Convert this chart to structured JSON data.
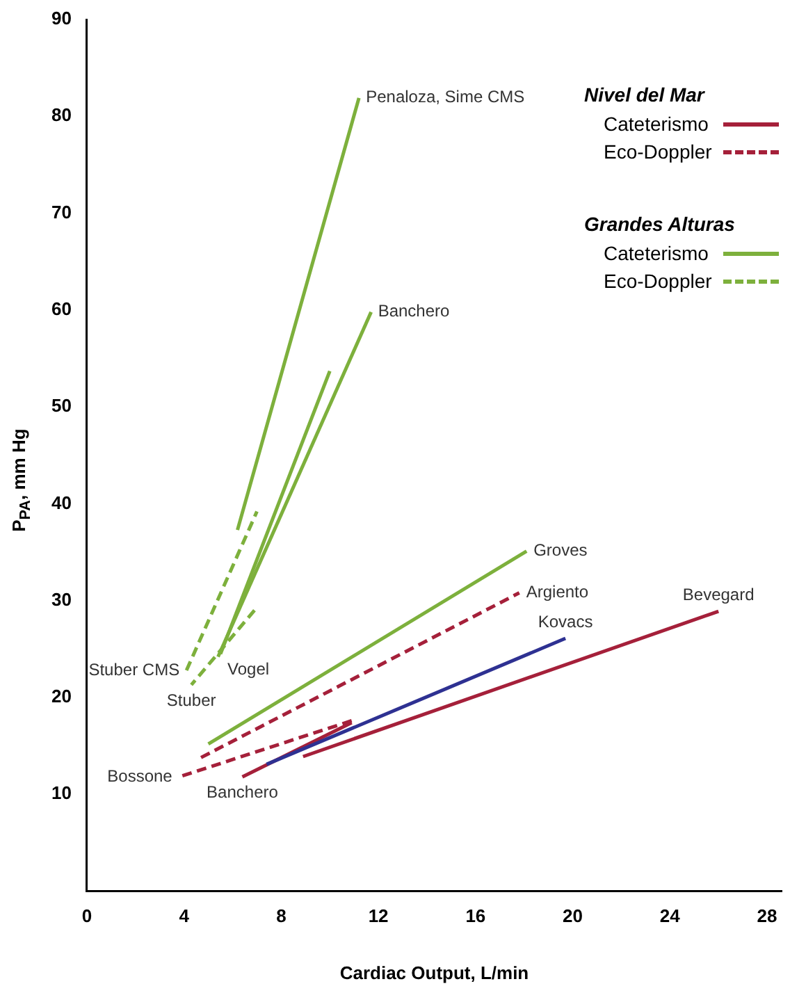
{
  "chart_data": {
    "type": "line",
    "xlabel": "Cardiac Output, L/min",
    "ylabel": "P$_{PA}$, mm Hg",
    "xlim": [
      0,
      28.6
    ],
    "xticks": [
      0,
      4,
      8,
      12,
      16,
      20,
      24,
      28
    ],
    "ylim": [
      0,
      90
    ],
    "yticks": [
      10,
      20,
      30,
      40,
      50,
      60,
      70,
      80,
      90
    ],
    "grid": false,
    "marker": "none",
    "series": [
      {
        "name": "Bevegard",
        "color": "#a5203a",
        "line_style": "solid",
        "x": [
          8.9,
          26.0
        ],
        "values": [
          13.9,
          28.9
        ]
      },
      {
        "name": "Argiento",
        "color": "#a5203a",
        "line_style": "dashed",
        "x": [
          4.7,
          17.8
        ],
        "values": [
          13.8,
          30.8
        ]
      },
      {
        "name": "Groves",
        "color": "#7db03c",
        "line_style": "solid",
        "x": [
          5.0,
          18.1
        ],
        "values": [
          15.2,
          35.1
        ]
      },
      {
        "name": "Stuber CMS",
        "color": "#7db03c",
        "line_style": "dashed",
        "x": [
          4.1,
          7.0
        ],
        "values": [
          22.8,
          39.2
        ]
      },
      {
        "name": "Stuber",
        "color": "#7db03c",
        "line_style": "dashed",
        "x": [
          6.9,
          4.3
        ],
        "values": [
          29.0,
          21.3
        ]
      },
      {
        "name": "Penaloza, Sime CMS",
        "color": "#7db03c",
        "line_style": "solid",
        "x": [
          6.2,
          11.2
        ],
        "values": [
          37.3,
          81.9
        ]
      },
      {
        "name": "Vogel",
        "color": "#7db03c",
        "line_style": "solid",
        "x": [
          5.5,
          10.0
        ],
        "values": [
          24.5,
          53.7
        ]
      },
      {
        "name": "Banchero",
        "color": "#7db03c",
        "line_style": "solid",
        "x": [
          5.4,
          11.7
        ],
        "values": [
          24.2,
          59.8
        ]
      },
      {
        "name": "Bossone",
        "color": "#a5203a",
        "line_style": "dashed",
        "x": [
          10.9,
          3.8
        ],
        "values": [
          17.6,
          11.8
        ]
      },
      {
        "name": "Kovacs",
        "color": "#2e3192",
        "line_style": "solid",
        "x": [
          7.4,
          19.7
        ],
        "values": [
          13.1,
          26.1
        ]
      },
      {
        "name": "Banchero",
        "color": "#a5203a",
        "line_style": "solid",
        "x": [
          10.9,
          6.4
        ],
        "values": [
          17.4,
          11.8
        ]
      }
    ],
    "annotations": [
      "Nivel del Mar",
      "Cateterismo",
      "Eco-Doppler",
      "Grandes Alturas",
      "Cateterismo",
      "Eco-Doppler"
    ]
  }
}
